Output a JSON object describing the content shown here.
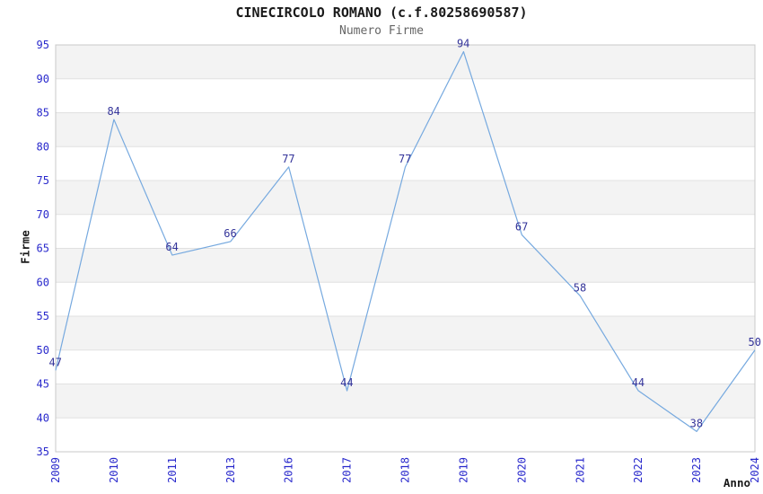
{
  "chart_data": {
    "type": "line",
    "title": "CINECIRCOLO ROMANO (c.f.80258690587)",
    "subtitle": "Numero Firme",
    "xlabel": "Anno",
    "ylabel": "Firme",
    "categories": [
      "2009",
      "2010",
      "2011",
      "2013",
      "2016",
      "2017",
      "2018",
      "2019",
      "2020",
      "2021",
      "2022",
      "2023",
      "2024"
    ],
    "values": [
      47,
      84,
      64,
      66,
      77,
      44,
      77,
      94,
      67,
      58,
      44,
      38,
      50
    ],
    "ylim": [
      35,
      95
    ],
    "ytick_step": 5,
    "yticks": [
      35,
      40,
      45,
      50,
      55,
      60,
      65,
      70,
      75,
      80,
      85,
      90,
      95
    ],
    "grid": "horizontal-bands-alternating",
    "legend_position": "none",
    "point_labels_shown": true,
    "colors": {
      "line": "#76A9DF",
      "tick_label": "#2929CC",
      "point_label": "#333399",
      "band_gray": "#F3F3F3",
      "band_white": "#FFFFFF",
      "gridline": "#E1E1E1",
      "frame": "#C8C8C8",
      "title": "#1A1A1A",
      "subtitle": "#666666",
      "axis_title": "#1A1A1A",
      "background": "#FFFFFF"
    }
  }
}
